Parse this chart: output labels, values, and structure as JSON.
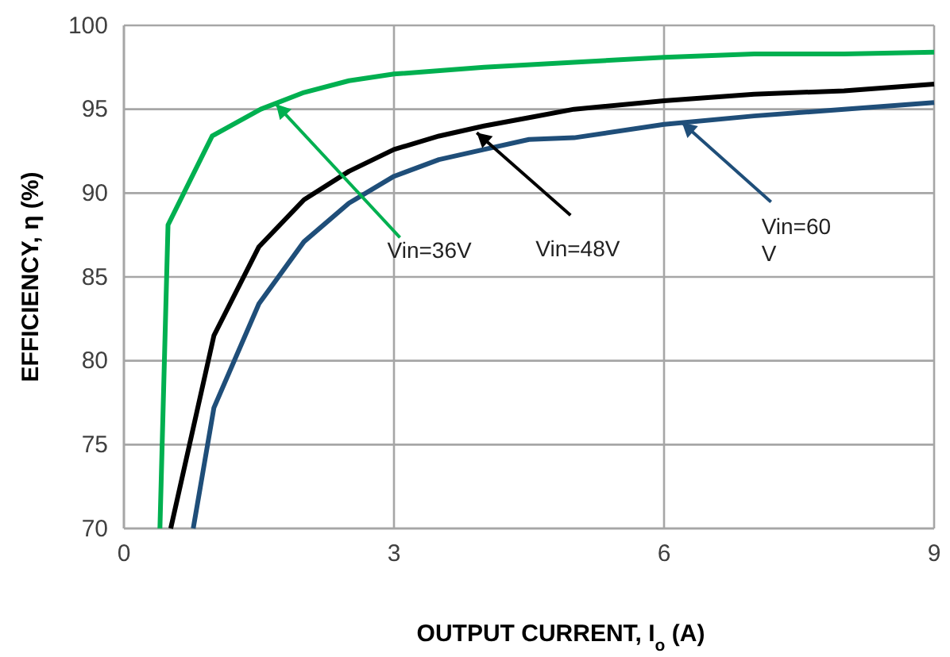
{
  "chart_data": {
    "type": "line",
    "xlabel": "OUTPUT CURRENT, I$_{o}$ (A)",
    "ylabel": "EFFICIENCY, η (%)",
    "xlim": [
      0,
      9
    ],
    "xticks": [
      0,
      3,
      6,
      9
    ],
    "ylim": [
      70,
      100
    ],
    "yticks": [
      70,
      75,
      80,
      85,
      90,
      95,
      100
    ],
    "grid": true,
    "marker": "none",
    "line_style": "solid",
    "series": [
      {
        "color": "#00b050",
        "x": [
          0.4,
          0.49,
          0.98,
          1.52,
          2,
          2.5,
          3,
          4,
          5,
          6,
          7,
          8,
          9
        ],
        "values": [
          70,
          88.1,
          93.4,
          95,
          96,
          96.7,
          97.1,
          97.5,
          97.8,
          98.1,
          98.3,
          98.3,
          98.4
        ]
      },
      {
        "color": "#000000",
        "x": [
          0.52,
          1,
          1.5,
          2,
          2.5,
          3,
          3.5,
          4,
          4.5,
          5,
          6,
          7,
          8,
          9
        ],
        "values": [
          70,
          81.5,
          86.8,
          89.6,
          91.3,
          92.6,
          93.4,
          94,
          94.5,
          95,
          95.5,
          95.9,
          96.1,
          96.5
        ]
      },
      {
        "color": "#1f4e79",
        "x": [
          0.77,
          1,
          1.5,
          2,
          2.5,
          3,
          3.5,
          4,
          4.5,
          5,
          6,
          7,
          8,
          9
        ],
        "values": [
          70,
          77.2,
          83.4,
          87.1,
          89.4,
          91,
          92,
          92.6,
          93.2,
          93.3,
          94.1,
          94.6,
          95,
          95.4
        ]
      }
    ],
    "annotations": [
      {
        "text": "Vin=36V",
        "x": 1.69,
        "y": 95.3
      },
      {
        "text": "Vin=48V",
        "x": 3.92,
        "y": 93.6
      },
      {
        "text": "Vin=60 V",
        "x": 6.2,
        "y": 94.2
      }
    ]
  }
}
